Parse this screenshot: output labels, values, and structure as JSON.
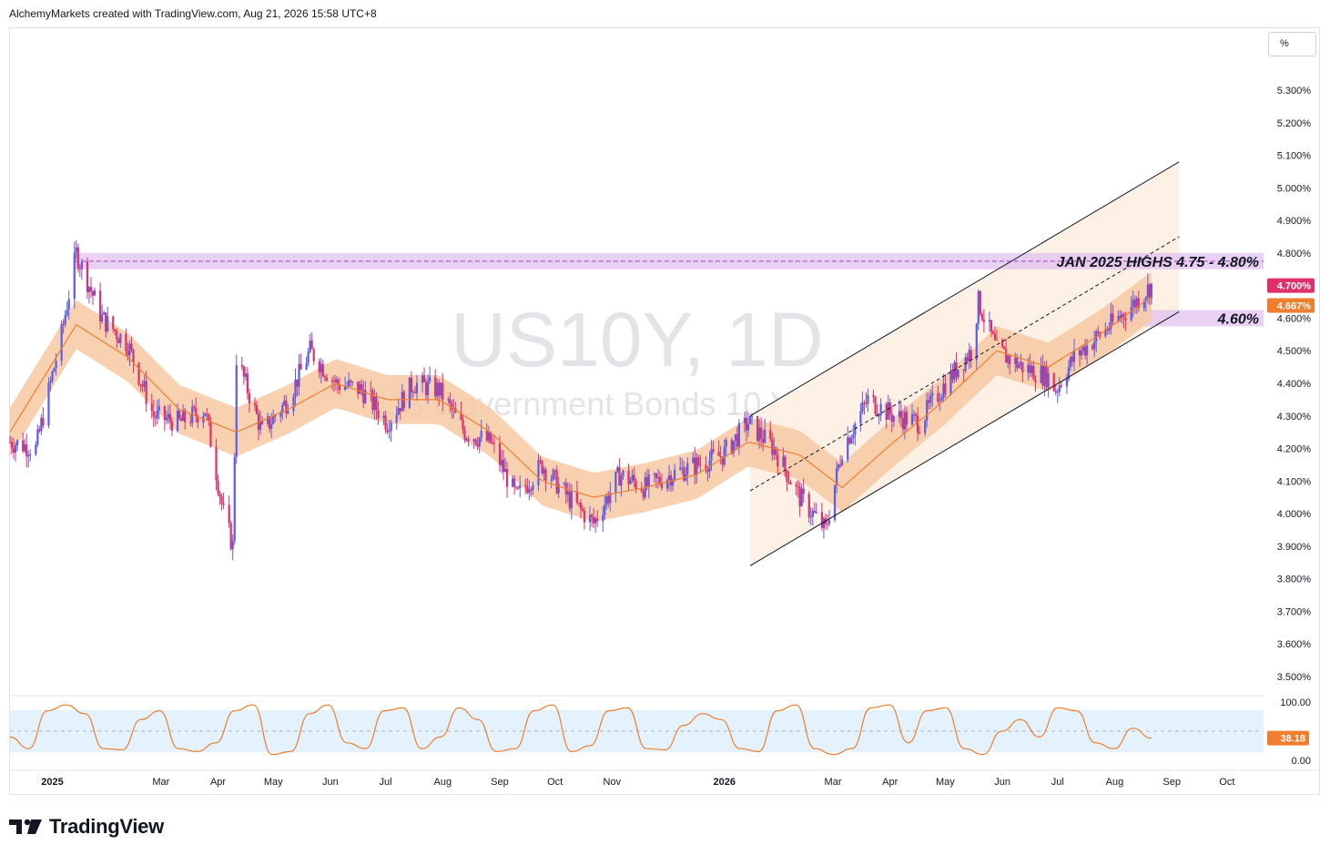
{
  "header": {
    "text": "AlchemyMarkets created with TradingView.com, Aug 21, 2026 15:58 UTC+8"
  },
  "scale_button": {
    "label": "%"
  },
  "brand": {
    "name": "TradingView"
  },
  "watermark": {
    "symbol": "US10Y, 1D",
    "description": "US Government Bonds 10 YR Yield"
  },
  "annotations": {
    "resistance_label": "JAN 2025 HIGHS 4.75 - 4.80%",
    "support_label": "4.60%"
  },
  "colors": {
    "up": "#5b5ce8",
    "down": "#e0306a",
    "ema": "#ef7e2e",
    "band": "#f7c9a3",
    "zone": "#e2c2f0",
    "channel_fill": "#fdf0e4",
    "oscillator": "#ef7e2e",
    "osc_band": "#e3f2fd",
    "price_badge": "#e0306a",
    "ema_badge": "#ef7e2e"
  },
  "chart_data": [
    {
      "type": "candlestick",
      "title": "US10Y, 1D",
      "unit": "%",
      "ylim": [
        3.45,
        5.35
      ],
      "y_ticks": [
        "5.300%",
        "5.200%",
        "5.100%",
        "5.000%",
        "4.900%",
        "4.800%",
        "4.700%",
        "4.600%",
        "4.500%",
        "4.400%",
        "4.300%",
        "4.200%",
        "4.100%",
        "4.000%",
        "3.900%",
        "3.800%",
        "3.700%",
        "3.600%",
        "3.500%"
      ],
      "x_ticks": [
        "2025",
        "Mar",
        "Apr",
        "May",
        "Jun",
        "Jul",
        "Aug",
        "Sep",
        "Oct",
        "Nov",
        "2026",
        "Mar",
        "Apr",
        "May",
        "Jun",
        "Jul",
        "Aug",
        "Sep",
        "Oct"
      ],
      "x_ticks_bold": [
        "2025",
        "2026"
      ],
      "last_price": "4.700%",
      "ema_value": "4.667%",
      "resistance_zone": [
        4.75,
        4.8
      ],
      "support_level": 4.6,
      "channel": {
        "upper": [
          [
            "2026-01-15",
            4.3
          ],
          [
            "2026-09-05",
            5.08
          ]
        ],
        "lower": [
          [
            "2026-01-15",
            3.84
          ],
          [
            "2026-09-05",
            4.62
          ]
        ],
        "mid": [
          [
            "2026-01-15",
            4.07
          ],
          [
            "2026-09-05",
            4.85
          ]
        ]
      },
      "series": [
        {
          "name": "price",
          "x": [
            "2024-12-09",
            "2024-12-23",
            "2025-01-06",
            "2025-01-14",
            "2025-01-28",
            "2025-02-11",
            "2025-02-25",
            "2025-03-11",
            "2025-03-25",
            "2025-04-04",
            "2025-04-09",
            "2025-04-11",
            "2025-04-25",
            "2025-05-09",
            "2025-05-21",
            "2025-06-04",
            "2025-06-18",
            "2025-07-02",
            "2025-07-16",
            "2025-07-30",
            "2025-08-13",
            "2025-08-27",
            "2025-09-10",
            "2025-09-24",
            "2025-10-08",
            "2025-10-22",
            "2025-11-05",
            "2025-11-19",
            "2025-12-03",
            "2025-12-17",
            "2025-12-31",
            "2026-01-14",
            "2026-01-28",
            "2026-02-11",
            "2026-02-25",
            "2026-03-06",
            "2026-03-20",
            "2026-04-03",
            "2026-04-17",
            "2026-05-01",
            "2026-05-15",
            "2026-05-19",
            "2026-05-29",
            "2026-06-12",
            "2026-06-26",
            "2026-06-30",
            "2026-07-10",
            "2026-07-24",
            "2026-08-07",
            "2026-08-21"
          ],
          "values": [
            4.22,
            4.2,
            4.55,
            4.8,
            4.6,
            4.52,
            4.3,
            4.28,
            4.32,
            4.0,
            3.9,
            4.48,
            4.25,
            4.35,
            4.5,
            4.4,
            4.38,
            4.28,
            4.4,
            4.38,
            4.25,
            4.22,
            4.05,
            4.15,
            4.05,
            3.97,
            4.12,
            4.08,
            4.12,
            4.15,
            4.18,
            4.28,
            4.2,
            4.05,
            3.95,
            4.2,
            4.35,
            4.3,
            4.28,
            4.4,
            4.5,
            4.65,
            4.5,
            4.45,
            4.42,
            4.38,
            4.48,
            4.55,
            4.62,
            4.7
          ]
        },
        {
          "name": "EMA",
          "x": [
            "2024-12-09",
            "2025-01-14",
            "2025-02-11",
            "2025-03-11",
            "2025-04-11",
            "2025-05-09",
            "2025-06-04",
            "2025-07-02",
            "2025-07-30",
            "2025-08-27",
            "2025-09-24",
            "2025-10-22",
            "2025-11-19",
            "2025-12-17",
            "2026-01-14",
            "2026-02-11",
            "2026-03-06",
            "2026-04-03",
            "2026-05-01",
            "2026-05-29",
            "2026-06-26",
            "2026-07-24",
            "2026-08-21"
          ],
          "values": [
            4.25,
            4.58,
            4.48,
            4.32,
            4.25,
            4.32,
            4.4,
            4.35,
            4.35,
            4.25,
            4.1,
            4.05,
            4.08,
            4.12,
            4.22,
            4.18,
            4.08,
            4.22,
            4.35,
            4.5,
            4.45,
            4.55,
            4.667
          ]
        }
      ]
    },
    {
      "type": "line",
      "title": "",
      "ylim": [
        0,
        100
      ],
      "y_ticks": [
        "100.00",
        "0.00"
      ],
      "last_value": "38.18",
      "band": [
        20,
        80
      ],
      "series": [
        {
          "name": "oscillator",
          "values": [
            40,
            20,
            85,
            95,
            80,
            20,
            18,
            70,
            85,
            20,
            15,
            30,
            85,
            95,
            10,
            15,
            80,
            95,
            30,
            20,
            85,
            90,
            20,
            40,
            90,
            70,
            15,
            20,
            85,
            95,
            15,
            25,
            85,
            90,
            20,
            18,
            60,
            80,
            70,
            20,
            15,
            85,
            95,
            20,
            10,
            20,
            90,
            95,
            30,
            85,
            90,
            20,
            10,
            50,
            70,
            40,
            90,
            85,
            30,
            20,
            55,
            38
          ]
        }
      ]
    }
  ]
}
